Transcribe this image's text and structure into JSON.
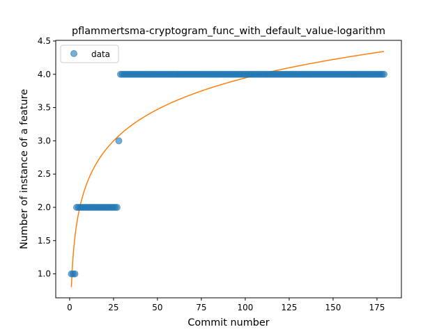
{
  "chart_data": {
    "type": "scatter",
    "title": "pflammertsma-cryptogram_func_with_default_value-logarithm",
    "xlabel": "Commit number",
    "ylabel": "Number of instance of a feature",
    "xlim": [
      -7.9,
      188.9
    ],
    "ylim": [
      0.64,
      4.51
    ],
    "x_ticks": [
      0,
      25,
      50,
      75,
      100,
      125,
      150,
      175
    ],
    "x_tick_labels": [
      "0",
      "25",
      "50",
      "75",
      "100",
      "125",
      "150",
      "175"
    ],
    "y_ticks": [
      1.0,
      1.5,
      2.0,
      2.5,
      3.0,
      3.5,
      4.0,
      4.5
    ],
    "y_tick_labels": [
      "1.0",
      "1.5",
      "2.0",
      "2.5",
      "3.0",
      "3.5",
      "4.0",
      "4.5"
    ],
    "legend": {
      "position": "upper-left",
      "entries": [
        "data"
      ]
    },
    "grid": false,
    "colors": {
      "data": "#1f77b4",
      "fit": "#ff7f0e"
    },
    "series": [
      {
        "name": "data",
        "kind": "scatter",
        "segments": [
          {
            "x_start": 1,
            "x_end": 3,
            "y": 1
          },
          {
            "x_start": 4,
            "x_end": 27,
            "y": 2
          },
          {
            "x_start": 28,
            "x_end": 28,
            "y": 3
          },
          {
            "x_start": 29,
            "x_end": 179,
            "y": 4
          }
        ]
      },
      {
        "kind": "line",
        "fit": {
          "model": "a + b*ln(x)",
          "a": 0.8,
          "b": 0.683,
          "x_range": [
            1,
            179
          ]
        }
      }
    ]
  }
}
